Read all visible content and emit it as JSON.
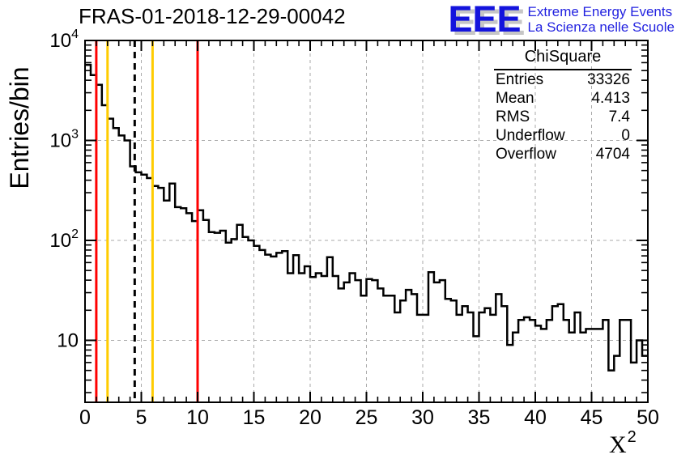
{
  "title": "FRAS-01-2018-12-29-00042",
  "logo": {
    "eee": "EEE",
    "line1": "Extreme Energy Events",
    "line2": "La Scienza nelle Scuole",
    "color": "#2222e0"
  },
  "stats": {
    "title": "ChiSquare",
    "rows": [
      [
        "Entries",
        "33326"
      ],
      [
        "Mean",
        "4.413"
      ],
      [
        "RMS",
        "7.4"
      ],
      [
        "Underflow",
        "0"
      ],
      [
        "Overflow",
        "4704"
      ]
    ]
  },
  "chart_data": {
    "type": "bar",
    "render_style": "step-histogram-outline",
    "title": "FRAS-01-2018-12-29-00042",
    "xlabel_base": "X",
    "xlabel_exp": "2",
    "ylabel": "Entries/bin",
    "xlim": [
      0,
      50
    ],
    "ylim": [
      2.4,
      10000
    ],
    "y_scale": "log",
    "bin_start": 0,
    "bin_width": 0.5,
    "values": [
      5700,
      4500,
      3600,
      2250,
      1650,
      1330,
      1120,
      1000,
      550,
      480,
      455,
      420,
      350,
      335,
      250,
      370,
      215,
      210,
      187,
      156,
      200,
      160,
      121,
      119,
      125,
      95,
      103,
      143,
      108,
      100,
      88,
      80,
      72,
      69,
      75,
      78,
      47,
      71,
      47,
      55,
      43,
      47,
      44,
      68,
      44,
      33,
      38,
      47,
      40,
      28,
      41,
      40,
      33,
      28,
      28,
      19,
      25,
      32,
      29,
      18,
      18,
      48,
      38,
      40,
      26,
      25,
      18,
      22,
      19,
      11,
      19,
      21,
      18,
      29,
      22,
      9,
      12,
      16,
      17,
      16,
      14,
      13,
      16,
      22,
      23,
      16,
      12,
      19,
      12,
      13,
      13,
      13,
      16,
      5,
      7,
      16,
      16,
      6,
      10,
      7
    ],
    "line_color": "#000000",
    "line_width": 2.5,
    "x_ticks": {
      "major_values": [
        0,
        5,
        10,
        15,
        20,
        25,
        30,
        35,
        40,
        45,
        50
      ],
      "labels": [
        "0",
        "5",
        "10",
        "15",
        "20",
        "25",
        "30",
        "35",
        "40",
        "45",
        "50"
      ],
      "minor_step": 1
    },
    "y_ticks": {
      "majors": [
        {
          "value": 10,
          "base": "10",
          "exp": null
        },
        {
          "value": 100,
          "base": "10",
          "exp": "2"
        },
        {
          "value": 1000,
          "base": "10",
          "exp": "3"
        },
        {
          "value": 10000,
          "base": "10",
          "exp": "4"
        }
      ],
      "minor_mantissas": [
        2,
        3,
        4,
        5,
        6,
        7,
        8,
        9
      ]
    },
    "grid": {
      "color": "#aaaaaa",
      "dash": "4 4",
      "x_values": [
        5,
        10,
        15,
        20,
        25,
        30,
        35,
        40,
        45
      ],
      "y_values": [
        10,
        100,
        1000,
        10000
      ]
    },
    "vlines": [
      {
        "x": 1,
        "color": "#ff0000",
        "style": "solid"
      },
      {
        "x": 2,
        "color": "#ffcc00",
        "style": "solid"
      },
      {
        "x": 4.413,
        "color": "#000000",
        "style": "dashed"
      },
      {
        "x": 6,
        "color": "#ffcc00",
        "style": "solid"
      },
      {
        "x": 10,
        "color": "#ff0000",
        "style": "solid"
      }
    ],
    "legend": null
  }
}
